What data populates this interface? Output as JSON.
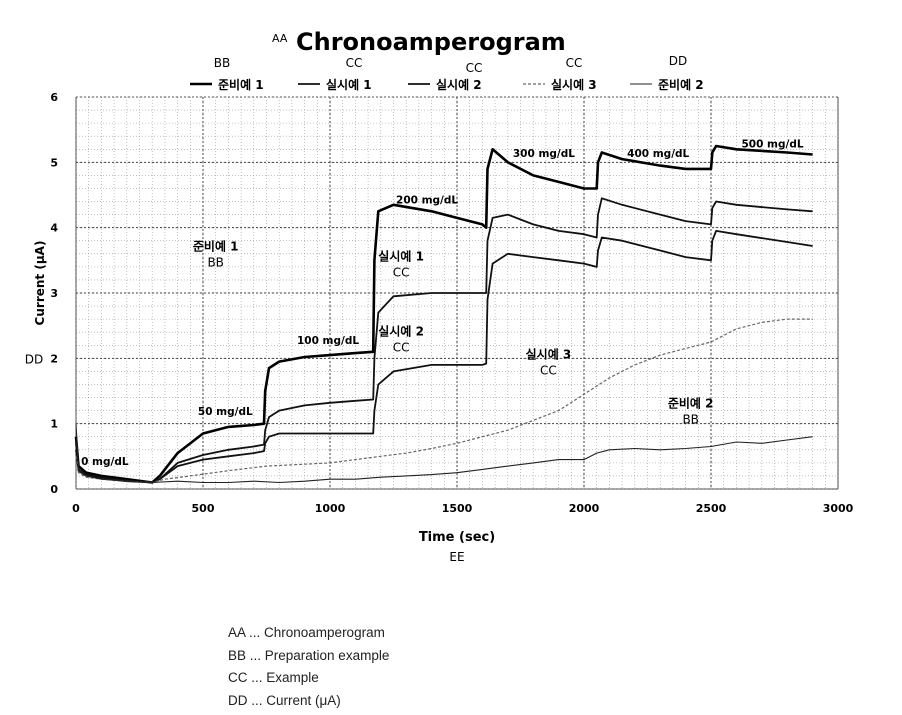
{
  "chart_data": {
    "type": "line",
    "title": "Chronoamperogram",
    "title_marker": "AA",
    "xlabel": "Time (sec)",
    "xlabel_marker": "EE",
    "ylabel": "Current (μA)",
    "ylabel_marker": "DD",
    "xlim": [
      0,
      3000
    ],
    "ylim": [
      0,
      6
    ],
    "x_ticks": [
      0,
      500,
      1000,
      1500,
      2000,
      2500,
      3000
    ],
    "y_ticks": [
      0,
      1,
      2,
      3,
      4,
      5,
      6
    ],
    "grid": true,
    "legend_position": "top",
    "legend_markers": [
      "BB",
      "CC",
      "CC",
      "CC",
      "DD"
    ],
    "series": [
      {
        "name": "준비예 1",
        "style": "solid-thick",
        "x": [
          0,
          10,
          40,
          100,
          200,
          300,
          330,
          400,
          500,
          600,
          700,
          740,
          745,
          760,
          800,
          900,
          1000,
          1100,
          1170,
          1175,
          1190,
          1250,
          1400,
          1500,
          1600,
          1615,
          1620,
          1640,
          1700,
          1800,
          1900,
          2000,
          2050,
          2055,
          2070,
          2150,
          2300,
          2400,
          2500,
          2505,
          2520,
          2600,
          2800,
          2900
        ],
        "y": [
          0.8,
          0.35,
          0.25,
          0.2,
          0.15,
          0.1,
          0.2,
          0.55,
          0.85,
          0.95,
          0.98,
          1.0,
          1.5,
          1.85,
          1.95,
          2.02,
          2.05,
          2.08,
          2.1,
          3.5,
          4.25,
          4.35,
          4.25,
          4.15,
          4.05,
          4.0,
          4.9,
          5.2,
          5.0,
          4.8,
          4.7,
          4.6,
          4.6,
          5.0,
          5.15,
          5.05,
          4.95,
          4.9,
          4.9,
          5.15,
          5.25,
          5.2,
          5.15,
          5.12
        ]
      },
      {
        "name": "실시예 1",
        "style": "solid",
        "x": [
          0,
          10,
          40,
          100,
          200,
          300,
          330,
          400,
          500,
          600,
          700,
          740,
          745,
          760,
          800,
          900,
          1000,
          1100,
          1170,
          1175,
          1190,
          1250,
          1400,
          1500,
          1600,
          1615,
          1620,
          1640,
          1700,
          1800,
          1900,
          2000,
          2050,
          2055,
          2070,
          2150,
          2300,
          2400,
          2500,
          2505,
          2520,
          2600,
          2800,
          2900
        ],
        "y": [
          0.7,
          0.3,
          0.22,
          0.18,
          0.13,
          0.1,
          0.15,
          0.4,
          0.52,
          0.6,
          0.65,
          0.68,
          0.9,
          1.1,
          1.2,
          1.28,
          1.32,
          1.35,
          1.37,
          2.0,
          2.7,
          2.95,
          3.0,
          3.0,
          3.0,
          3.0,
          3.8,
          4.15,
          4.2,
          4.05,
          3.95,
          3.9,
          3.85,
          4.2,
          4.45,
          4.35,
          4.2,
          4.1,
          4.05,
          4.3,
          4.4,
          4.35,
          4.28,
          4.25
        ]
      },
      {
        "name": "실시예 2",
        "style": "solid",
        "x": [
          0,
          10,
          40,
          100,
          200,
          300,
          330,
          400,
          500,
          600,
          700,
          740,
          745,
          760,
          800,
          900,
          1000,
          1100,
          1170,
          1175,
          1190,
          1250,
          1400,
          1500,
          1600,
          1615,
          1620,
          1640,
          1700,
          1800,
          1900,
          2000,
          2050,
          2055,
          2070,
          2150,
          2300,
          2400,
          2500,
          2505,
          2520,
          2600,
          2800,
          2900
        ],
        "y": [
          0.6,
          0.28,
          0.2,
          0.16,
          0.12,
          0.1,
          0.15,
          0.35,
          0.45,
          0.5,
          0.55,
          0.58,
          0.7,
          0.8,
          0.85,
          0.85,
          0.85,
          0.85,
          0.85,
          1.2,
          1.6,
          1.8,
          1.9,
          1.9,
          1.9,
          1.92,
          2.9,
          3.45,
          3.6,
          3.55,
          3.5,
          3.45,
          3.4,
          3.65,
          3.85,
          3.8,
          3.65,
          3.55,
          3.5,
          3.8,
          3.95,
          3.9,
          3.78,
          3.72
        ]
      },
      {
        "name": "실시예 3",
        "style": "dashed",
        "x": [
          0,
          10,
          40,
          100,
          200,
          300,
          350,
          450,
          600,
          750,
          900,
          1000,
          1100,
          1200,
          1300,
          1400,
          1500,
          1600,
          1700,
          1800,
          1900,
          2000,
          2100,
          2200,
          2300,
          2400,
          2500,
          2600,
          2700,
          2800,
          2900
        ],
        "y": [
          0.5,
          0.25,
          0.18,
          0.15,
          0.12,
          0.1,
          0.15,
          0.2,
          0.28,
          0.35,
          0.38,
          0.4,
          0.45,
          0.5,
          0.55,
          0.62,
          0.7,
          0.8,
          0.9,
          1.05,
          1.2,
          1.45,
          1.7,
          1.9,
          2.05,
          2.15,
          2.25,
          2.45,
          2.55,
          2.6,
          2.6
        ]
      },
      {
        "name": "준비예 2",
        "style": "solid-thin",
        "x": [
          0,
          10,
          40,
          100,
          200,
          300,
          400,
          500,
          600,
          700,
          800,
          900,
          1000,
          1100,
          1200,
          1300,
          1400,
          1500,
          1600,
          1700,
          1800,
          1900,
          2000,
          2050,
          2100,
          2200,
          2300,
          2400,
          2500,
          2600,
          2700,
          2800,
          2900
        ],
        "y": [
          1.0,
          0.3,
          0.2,
          0.15,
          0.12,
          0.1,
          0.12,
          0.1,
          0.1,
          0.12,
          0.1,
          0.12,
          0.15,
          0.15,
          0.18,
          0.2,
          0.22,
          0.25,
          0.3,
          0.35,
          0.4,
          0.45,
          0.45,
          0.55,
          0.6,
          0.62,
          0.6,
          0.62,
          0.65,
          0.72,
          0.7,
          0.75,
          0.8
        ]
      }
    ],
    "annotations": [
      {
        "text": "0 mg/dL",
        "x": 20,
        "y": 0.37
      },
      {
        "text": "50 mg/dL",
        "x": 480,
        "y": 1.13
      },
      {
        "text": "100 mg/dL",
        "x": 870,
        "y": 2.22
      },
      {
        "text": "200 mg/dL",
        "x": 1260,
        "y": 4.37
      },
      {
        "text": "300 mg/dL",
        "x": 1720,
        "y": 5.08
      },
      {
        "text": "400 mg/dL",
        "x": 2170,
        "y": 5.08
      },
      {
        "text": "500 mg/dL",
        "x": 2620,
        "y": 5.23
      }
    ],
    "series_callouts": [
      {
        "label": "준비예 1",
        "marker": "BB",
        "x": 550,
        "y": 3.65
      },
      {
        "label": "실시예 1",
        "marker": "CC",
        "x": 1280,
        "y": 3.5
      },
      {
        "label": "실시예 2",
        "marker": "CC",
        "x": 1280,
        "y": 2.35
      },
      {
        "label": "실시예 3",
        "marker": "CC",
        "x": 1860,
        "y": 2.0
      },
      {
        "label": "준비예 2",
        "marker": "BB",
        "x": 2420,
        "y": 1.25
      }
    ]
  },
  "glossary": [
    "AA ... Chronoamperogram",
    "BB ... Preparation example",
    "CC ... Example",
    "DD ... Current (μA)"
  ]
}
